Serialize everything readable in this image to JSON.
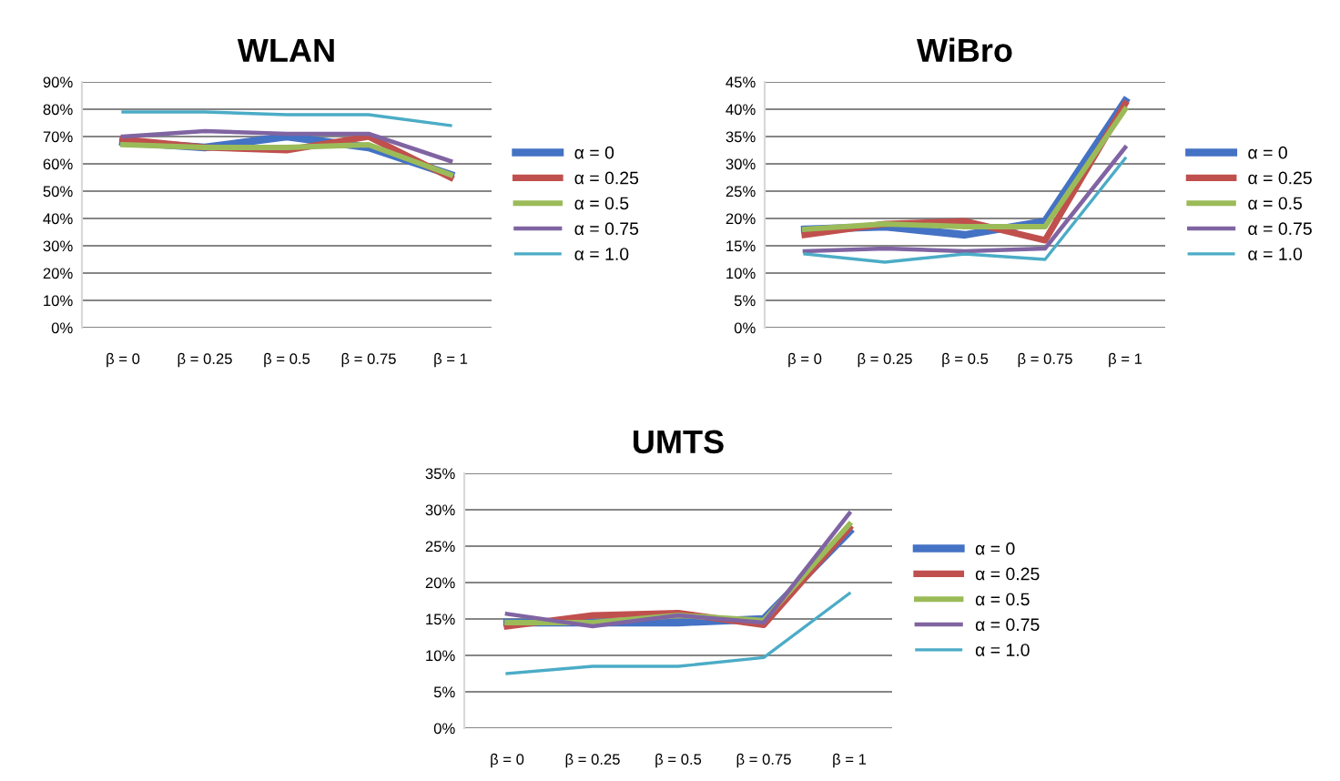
{
  "chart_data": [
    {
      "type": "line",
      "title": "WLAN",
      "categories": [
        "β = 0",
        "β = 0.25",
        "β = 0.5",
        "β = 0.75",
        "β = 1"
      ],
      "series": [
        {
          "name": "α = 0",
          "color": "#4472c4",
          "values": [
            68,
            66,
            70,
            66,
            56
          ]
        },
        {
          "name": "α = 0.25",
          "color": "#c0504d",
          "values": [
            69,
            66,
            65,
            70,
            55
          ]
        },
        {
          "name": "α = 0.5",
          "color": "#9bbb59",
          "values": [
            67,
            66,
            66,
            67,
            56
          ]
        },
        {
          "name": "α = 0.75",
          "color": "#8064a2",
          "values": [
            70,
            72,
            71,
            71,
            61
          ]
        },
        {
          "name": "α = 1.0",
          "color": "#4bacc6",
          "values": [
            79,
            79,
            78,
            78,
            74
          ]
        }
      ],
      "ylim": [
        0,
        90
      ],
      "yticks": [
        {
          "value": 0,
          "label": "0%"
        },
        {
          "value": 10,
          "label": "10%"
        },
        {
          "value": 20,
          "label": "20%"
        },
        {
          "value": 30,
          "label": "30%"
        },
        {
          "value": 40,
          "label": "40%"
        },
        {
          "value": 50,
          "label": "50%"
        },
        {
          "value": 60,
          "label": "60%"
        },
        {
          "value": 70,
          "label": "70%"
        },
        {
          "value": 80,
          "label": "80%"
        },
        {
          "value": 90,
          "label": "90%"
        }
      ],
      "grid": "y",
      "legend": "right",
      "marker": "none",
      "line_style": "solid"
    },
    {
      "type": "line",
      "title": "WiBro",
      "categories": [
        "β = 0",
        "β = 0.25",
        "β = 0.5",
        "β = 0.75",
        "β = 1"
      ],
      "series": [
        {
          "name": "α = 0",
          "color": "#4472c4",
          "values": [
            18,
            18.5,
            17,
            19.5,
            41.5
          ]
        },
        {
          "name": "α = 0.25",
          "color": "#c0504d",
          "values": [
            17,
            19,
            19.5,
            16,
            41
          ]
        },
        {
          "name": "α = 0.5",
          "color": "#9bbb59",
          "values": [
            18,
            19,
            18.5,
            18.5,
            40
          ]
        },
        {
          "name": "α = 0.75",
          "color": "#8064a2",
          "values": [
            14,
            14.5,
            14,
            14.5,
            33
          ]
        },
        {
          "name": "α = 1.0",
          "color": "#4bacc6",
          "values": [
            13.5,
            12,
            13.5,
            12.5,
            31
          ]
        }
      ],
      "ylim": [
        0,
        45
      ],
      "yticks": [
        {
          "value": 0,
          "label": "0%"
        },
        {
          "value": 5,
          "label": "5%"
        },
        {
          "value": 10,
          "label": "10%"
        },
        {
          "value": 15,
          "label": "15%"
        },
        {
          "value": 20,
          "label": "20%"
        },
        {
          "value": 25,
          "label": "25%"
        },
        {
          "value": 30,
          "label": "30%"
        },
        {
          "value": 35,
          "label": "35%"
        },
        {
          "value": 40,
          "label": "40%"
        },
        {
          "value": 45,
          "label": "45%"
        }
      ],
      "grid": "y",
      "legend": "right",
      "marker": "none",
      "line_style": "solid"
    },
    {
      "type": "line",
      "title": "UMTS",
      "categories": [
        "β = 0",
        "β = 0.25",
        "β = 0.5",
        "β = 0.75",
        "β = 1"
      ],
      "series": [
        {
          "name": "α = 0",
          "color": "#4472c4",
          "values": [
            14.5,
            14.5,
            14.5,
            15,
            27
          ]
        },
        {
          "name": "α = 0.25",
          "color": "#c0504d",
          "values": [
            14,
            15.5,
            15.8,
            14.2,
            27.5
          ]
        },
        {
          "name": "α = 0.5",
          "color": "#9bbb59",
          "values": [
            14.5,
            14.5,
            15.5,
            14.8,
            28
          ]
        },
        {
          "name": "α = 0.75",
          "color": "#8064a2",
          "values": [
            15.7,
            14,
            15.5,
            14.5,
            29.5
          ]
        },
        {
          "name": "α = 1.0",
          "color": "#4bacc6",
          "values": [
            7.5,
            8.5,
            8.5,
            9.7,
            18.5
          ]
        }
      ],
      "ylim": [
        0,
        35
      ],
      "yticks": [
        {
          "value": 0,
          "label": "0%"
        },
        {
          "value": 5,
          "label": "5%"
        },
        {
          "value": 10,
          "label": "10%"
        },
        {
          "value": 15,
          "label": "15%"
        },
        {
          "value": 20,
          "label": "20%"
        },
        {
          "value": 25,
          "label": "25%"
        },
        {
          "value": 30,
          "label": "30%"
        },
        {
          "value": 35,
          "label": "35%"
        }
      ],
      "grid": "y",
      "legend": "right",
      "marker": "none",
      "line_style": "solid"
    }
  ]
}
